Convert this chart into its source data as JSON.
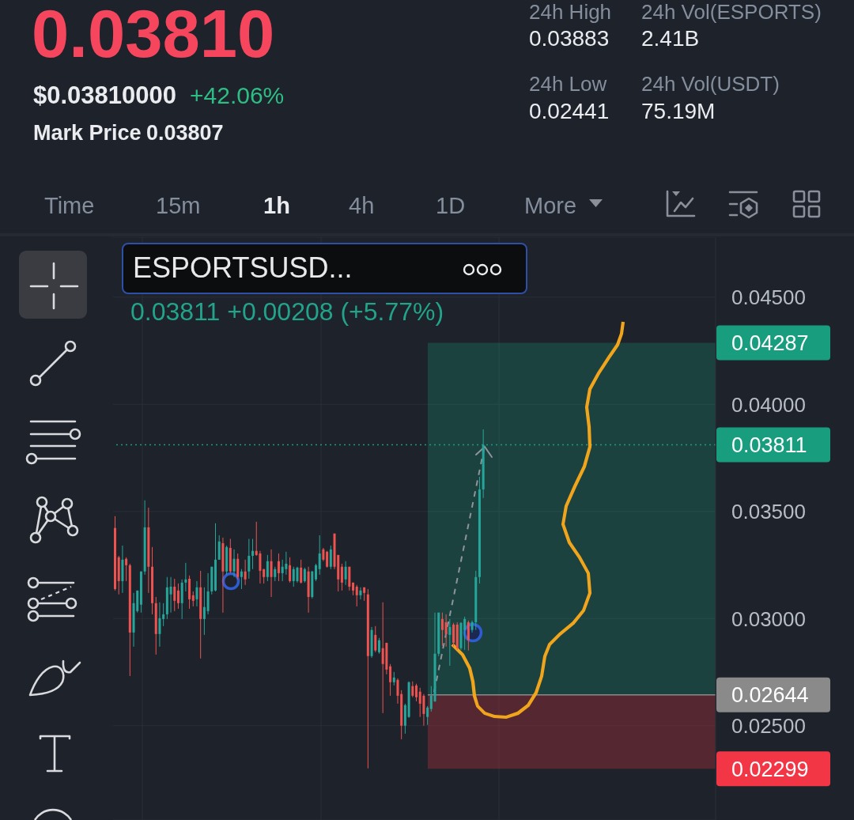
{
  "chart_data": {
    "type": "candlestick",
    "title": "ESPORTSUSD...",
    "subtitle": "0.03811 +0.00208 (+5.77%)",
    "annotations": [
      "0.03810",
      "$0.03810000",
      "+42.06%",
      "Mark Price",
      "0.03807",
      "24h High",
      "0.03883",
      "24h Low",
      "0.02441",
      "24h Vol(ESPORTS)",
      "2.41B",
      "24h Vol(USDT)",
      "75.19M",
      "Time",
      "15m",
      "1h",
      "4h",
      "1D",
      "More"
    ],
    "categories": [
      null,
      null,
      null,
      null,
      null,
      null,
      null,
      null,
      null,
      null,
      null,
      null,
      null,
      null,
      null,
      null,
      null,
      null,
      null,
      null,
      null,
      null,
      null,
      null,
      null,
      null,
      null,
      null,
      null,
      null,
      null,
      null,
      null,
      null,
      null,
      null,
      null,
      null,
      null,
      null,
      null,
      null,
      null,
      null,
      null,
      null,
      null,
      null,
      null,
      null,
      null,
      null,
      null,
      null,
      null,
      null,
      null,
      null,
      null,
      null,
      null,
      null,
      null,
      null,
      null,
      null,
      null,
      null,
      null,
      null,
      null,
      null,
      null,
      null,
      null,
      null,
      null,
      null,
      null,
      null,
      null,
      null,
      null,
      null,
      null,
      null,
      null,
      null,
      null,
      null,
      null,
      null,
      null,
      null,
      null,
      null,
      null,
      null,
      null,
      null,
      null,
      null,
      null,
      null,
      null,
      null,
      null,
      null,
      null,
      null,
      null,
      null,
      null,
      null,
      null,
      null,
      null,
      null,
      null,
      null,
      null,
      null,
      null,
      null,
      null,
      null,
      null,
      null,
      null,
      null,
      null,
      null,
      null,
      null,
      null,
      null,
      null,
      null,
      null,
      null,
      null,
      null,
      null,
      null,
      null,
      null,
      null,
      null,
      null,
      null,
      null,
      null,
      null,
      null,
      null,
      null,
      null,
      null,
      null,
      null,
      null,
      null
    ],
    "ohlc": [
      [
        0.03423,
        0.03478,
        0.03131,
        0.03138
      ],
      [
        0.03286,
        0.03293,
        0.03113,
        0.03175
      ],
      [
        0.03175,
        0.03341,
        0.0312,
        0.03275
      ],
      [
        0.03279,
        0.03286,
        0.03175,
        0.03249
      ],
      [
        0.03249,
        0.03256,
        0.02732,
        0.02935
      ],
      [
        0.02935,
        0.0312,
        0.02869,
        0.03072
      ],
      [
        0.03035,
        0.03131,
        0.03028,
        0.03131
      ],
      [
        0.03065,
        0.0322,
        0.03028,
        0.0322
      ],
      [
        0.0322,
        0.03552,
        0.03205,
        0.03426
      ],
      [
        0.03426,
        0.03518,
        0.0312,
        0.03242
      ],
      [
        0.03242,
        0.03334,
        0.0302,
        0.03072
      ],
      [
        0.03072,
        0.03101,
        0.02832,
        0.02928
      ],
      [
        0.02928,
        0.03076,
        0.02869,
        0.03002
      ],
      [
        0.02998,
        0.03072,
        0.02965,
        0.0302
      ],
      [
        0.0302,
        0.03194,
        0.02998,
        0.03146
      ],
      [
        0.03113,
        0.03194,
        0.03028,
        0.03149
      ],
      [
        0.03149,
        0.03186,
        0.03035,
        0.03083
      ],
      [
        0.03131,
        0.03164,
        0.03046,
        0.03072
      ],
      [
        0.03072,
        0.03183,
        0.02998,
        0.03168
      ],
      [
        0.03168,
        0.0326,
        0.03127,
        0.03183
      ],
      [
        0.03186,
        0.03201,
        0.03046,
        0.0309
      ],
      [
        0.03109,
        0.03127,
        0.03057,
        0.03083
      ],
      [
        0.0309,
        0.03175,
        0.03057,
        0.03146
      ],
      [
        0.03146,
        0.03223,
        0.02814,
        0.02998
      ],
      [
        0.02998,
        0.03146,
        0.02924,
        0.03054
      ],
      [
        0.03035,
        0.03212,
        0.0302,
        0.03127
      ],
      [
        0.03127,
        0.03242,
        0.03113,
        0.03242
      ],
      [
        0.03131,
        0.03445,
        0.03127,
        0.03275
      ],
      [
        0.03275,
        0.03389,
        0.03275,
        0.0336
      ],
      [
        0.03352,
        0.03378,
        0.03028,
        0.0322
      ],
      [
        0.0322,
        0.03341,
        0.03205,
        0.03334
      ],
      [
        0.0333,
        0.03372,
        0.03212,
        0.0322
      ],
      [
        0.0322,
        0.03323,
        0.03194,
        0.03279
      ],
      [
        0.03279,
        0.03304,
        0.03183,
        0.03194
      ],
      [
        0.03194,
        0.03231,
        0.03138,
        0.0322
      ],
      [
        0.0322,
        0.03275,
        0.03157,
        0.03183
      ],
      [
        0.0322,
        0.03372,
        0.03186,
        0.03293
      ],
      [
        0.03293,
        0.03372,
        0.03231,
        0.03316
      ],
      [
        0.03316,
        0.03452,
        0.03293,
        0.03297
      ],
      [
        0.03304,
        0.03316,
        0.03164,
        0.03223
      ],
      [
        0.03231,
        0.03231,
        0.03164,
        0.03194
      ],
      [
        0.03194,
        0.03297,
        0.03175,
        0.03268
      ],
      [
        0.03268,
        0.03323,
        0.03101,
        0.03194
      ],
      [
        0.03194,
        0.03242,
        0.03175,
        0.03231
      ],
      [
        0.03268,
        0.03304,
        0.03175,
        0.03212
      ],
      [
        0.03212,
        0.03275,
        0.03175,
        0.03242
      ],
      [
        0.03231,
        0.03312,
        0.03205,
        0.03256
      ],
      [
        0.03249,
        0.03286,
        0.03168,
        0.03175
      ],
      [
        0.03175,
        0.03242,
        0.03149,
        0.03231
      ],
      [
        0.03175,
        0.03242,
        0.03168,
        0.03238
      ],
      [
        0.03238,
        0.03275,
        0.03164,
        0.03168
      ],
      [
        0.03175,
        0.03238,
        0.03168,
        0.03231
      ],
      [
        0.0322,
        0.03242,
        0.03028,
        0.03101
      ],
      [
        0.03101,
        0.03223,
        0.03094,
        0.0322
      ],
      [
        0.03183,
        0.03256,
        0.03175,
        0.03249
      ],
      [
        0.03231,
        0.03389,
        0.03205,
        0.03304
      ],
      [
        0.03323,
        0.0333,
        0.03268,
        0.03275
      ],
      [
        0.03312,
        0.03316,
        0.03238,
        0.03242
      ],
      [
        0.03242,
        0.03341,
        0.03231,
        0.03323
      ],
      [
        0.03397,
        0.03397,
        0.03231,
        0.03242
      ],
      [
        0.03297,
        0.03297,
        0.03127,
        0.03183
      ],
      [
        0.03242,
        0.03256,
        0.03131,
        0.03168
      ],
      [
        0.03183,
        0.03268,
        0.03157,
        0.03242
      ],
      [
        0.03242,
        0.03242,
        0.03131,
        0.03149
      ],
      [
        0.03168,
        0.03168,
        0.03109,
        0.03131
      ],
      [
        0.03149,
        0.03157,
        0.03057,
        0.03109
      ],
      [
        0.03109,
        0.03146,
        0.0309,
        0.03131
      ],
      [
        0.03146,
        0.03146,
        0.03083,
        0.0312
      ],
      [
        0.03113,
        0.03138,
        0.02301,
        0.02825
      ],
      [
        0.02825,
        0.02961,
        0.02817,
        0.02947
      ],
      [
        0.02924,
        0.02965,
        0.02843,
        0.02851
      ],
      [
        0.02843,
        0.0291,
        0.02836,
        0.02899
      ],
      [
        0.02862,
        0.03076,
        0.02559,
        0.02788
      ],
      [
        0.02887,
        0.02887,
        0.0274,
        0.02762
      ],
      [
        0.02777,
        0.02788,
        0.0264,
        0.02703
      ],
      [
        0.02703,
        0.02751,
        0.02688,
        0.02725
      ],
      [
        0.02714,
        0.02721,
        0.02603,
        0.0264
      ],
      [
        0.02648,
        0.02666,
        0.02437,
        0.025
      ],
      [
        0.025,
        0.02603,
        0.02463,
        0.02596
      ],
      [
        0.02541,
        0.02707,
        0.02537,
        0.02703
      ],
      [
        0.02685,
        0.02707,
        0.02633,
        0.0264
      ],
      [
        0.02688,
        0.02696,
        0.02614,
        0.02633
      ],
      [
        0.02659,
        0.02677,
        0.02541,
        0.02603
      ],
      [
        0.0264,
        0.02648,
        0.025,
        0.02555
      ],
      [
        0.02541,
        0.02592,
        0.02504,
        0.02585
      ],
      [
        0.02578,
        0.02685,
        0.02566,
        0.0264
      ],
      [
        0.02614,
        0.03028,
        0.02611,
        0.02836
      ],
      [
        0.02836,
        0.03028,
        0.02825,
        0.03028
      ],
      [
        0.02998,
        0.03028,
        0.02873,
        0.02947
      ],
      [
        0.02983,
        0.0302,
        0.02869,
        0.02928
      ],
      [
        0.02924,
        0.02998,
        0.0278,
        0.02961
      ],
      [
        0.02972,
        0.0298,
        0.02869,
        0.02887
      ],
      [
        0.02972,
        0.02983,
        0.02854,
        0.02862
      ],
      [
        0.02862,
        0.02983,
        0.02854,
        0.0298
      ],
      [
        0.02947,
        0.03009,
        0.02854,
        0.02998
      ],
      [
        0.02983,
        0.02991,
        0.02851,
        0.02899
      ],
      [
        0.02947,
        0.02991,
        0.02935,
        0.02983
      ],
      [
        0.02983,
        0.03223,
        0.02947,
        0.03194
      ],
      [
        0.03194,
        0.03662,
        0.03164,
        0.03603
      ],
      [
        0.03603,
        0.03883,
        0.03563,
        0.03811
      ],
      null,
      null,
      null,
      null,
      null,
      null,
      null,
      null,
      null,
      null,
      null,
      null,
      null,
      null,
      null,
      null,
      null,
      null,
      null,
      null,
      null,
      null,
      null,
      null,
      null,
      null,
      null,
      null,
      null,
      null,
      null,
      null,
      null,
      null,
      null,
      null,
      null,
      null,
      null,
      null,
      null,
      null,
      null,
      null,
      null,
      null,
      null,
      null,
      null,
      null,
      null,
      null,
      null,
      null,
      null,
      null,
      null,
      null,
      null,
      null,
      null,
      null
    ],
    "colors": [
      "#ef5350",
      "#ef5350",
      "#26a69a",
      "#ef5350",
      "#ef5350",
      "#26a69a",
      "#26a69a",
      "#26a69a",
      "#26a69a",
      "#ef5350",
      "#ef5350",
      "#ef5350",
      "#26a69a",
      "#26a69a",
      "#26a69a",
      "#26a69a",
      "#ef5350",
      "#ef5350",
      "#26a69a",
      "#26a69a",
      "#ef5350",
      "#ef5350",
      "#26a69a",
      "#ef5350",
      "#26a69a",
      "#26a69a",
      "#26a69a",
      "#26a69a",
      "#26a69a",
      "#ef5350",
      "#26a69a",
      "#ef5350",
      "#26a69a",
      "#ef5350",
      "#26a69a",
      "#ef5350",
      "#26a69a",
      "#26a69a",
      "#ef5350",
      "#ef5350",
      "#ef5350",
      "#26a69a",
      "#ef5350",
      "#26a69a",
      "#ef5350",
      "#26a69a",
      "#26a69a",
      "#ef5350",
      "#26a69a",
      "#26a69a",
      "#ef5350",
      "#26a69a",
      "#ef5350",
      "#26a69a",
      "#26a69a",
      "#26a69a",
      "#ef5350",
      "#ef5350",
      "#26a69a",
      "#ef5350",
      "#ef5350",
      "#ef5350",
      "#26a69a",
      "#ef5350",
      "#ef5350",
      "#ef5350",
      "#26a69a",
      "#ef5350",
      "#ef5350",
      "#26a69a",
      "#ef5350",
      "#26a69a",
      "#ef5350",
      "#ef5350",
      "#ef5350",
      "#26a69a",
      "#ef5350",
      "#ef5350",
      "#26a69a",
      "#26a69a",
      "#ef5350",
      "#ef5350",
      "#ef5350",
      "#ef5350",
      "#26a69a",
      "#26a69a",
      "#26a69a",
      "#26a69a",
      "#ef5350",
      "#ef5350",
      "#26a69a",
      "#ef5350",
      "#ef5350",
      "#26a69a",
      "#26a69a",
      "#ef5350",
      "#26a69a",
      "#26a69a",
      "#26a69a",
      "#26a69a",
      null,
      null,
      null,
      null,
      null,
      null,
      null,
      null,
      null,
      null,
      null,
      null,
      null,
      null,
      null,
      null,
      null,
      null,
      null,
      null,
      null,
      null,
      null,
      null,
      null,
      null,
      null,
      null,
      null,
      null,
      null,
      null,
      null,
      null,
      null,
      null,
      null,
      null,
      null,
      null,
      null,
      null,
      null,
      null,
      null,
      null,
      null,
      null,
      null,
      null,
      null,
      null,
      null,
      null,
      null,
      null,
      null,
      null,
      null,
      null,
      null,
      null
    ],
    "ylim": [
      0.0206,
      0.0478
    ],
    "yticks": [
      {
        "value": 0.025,
        "label": "0.02500"
      },
      {
        "value": 0.03,
        "label": "0.03000"
      },
      {
        "value": 0.035,
        "label": "0.03500"
      },
      {
        "value": 0.04,
        "label": "0.04000"
      },
      {
        "value": 0.045,
        "label": "0.04500"
      }
    ],
    "ref_lines": [
      {
        "axis": "y",
        "value": 0.03811,
        "label": "0.03811",
        "color": "#199d7f",
        "line_style": "dotted"
      },
      {
        "axis": "y",
        "value": 0.02644,
        "label": "0.02644",
        "color": "#8a8a8a"
      }
    ],
    "bands": [
      {
        "axis": "y",
        "from": 0.02644,
        "to": 0.04287,
        "label": "0.04287",
        "color": "#199d7f"
      },
      {
        "axis": "y",
        "from": 0.02644,
        "to": 0.02299,
        "label": "0.02299",
        "color": "#f23645"
      }
    ],
    "grid": true,
    "tick_labels": "y"
  }
}
